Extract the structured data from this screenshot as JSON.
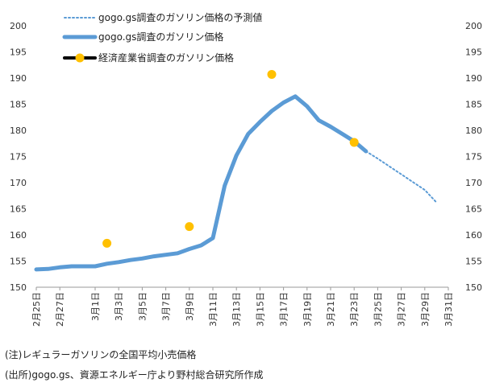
{
  "chart_data": {
    "type": "line",
    "x_labels": [
      "2月25日",
      "2月27日",
      "3月1日",
      "3月3日",
      "3月5日",
      "3月7日",
      "3月9日",
      "3月11日",
      "3月13日",
      "3月15日",
      "3月17日",
      "3月19日",
      "3月21日",
      "3月23日",
      "3月25日",
      "3月27日",
      "3月29日",
      "3月31日"
    ],
    "y_ticks": [
      "150",
      "155",
      "160",
      "165",
      "170",
      "175",
      "180",
      "185",
      "190",
      "195",
      "200"
    ],
    "ylim": [
      150,
      200
    ],
    "xlim": [
      "2月25日",
      "3月31日"
    ],
    "legend_position": "top-left",
    "grid": false,
    "series": [
      {
        "name": "gogo.gs調査のガソリン価格の予測値",
        "style": "dotted",
        "color": "#5b9bd5",
        "points": [
          {
            "x": "3月24日",
            "y": 176.0
          },
          {
            "x": "3月25日",
            "y": 174.6
          },
          {
            "x": "3月26日",
            "y": 173.1
          },
          {
            "x": "3月27日",
            "y": 171.6
          },
          {
            "x": "3月28日",
            "y": 170.1
          },
          {
            "x": "3月29日",
            "y": 168.6
          },
          {
            "x": "3月30日",
            "y": 166.2
          }
        ]
      },
      {
        "name": "gogo.gs調査のガソリン価格",
        "style": "solid",
        "color": "#5b9bd5",
        "points": [
          {
            "x": "2月25日",
            "y": 153.4
          },
          {
            "x": "2月26日",
            "y": 153.5
          },
          {
            "x": "2月27日",
            "y": 153.8
          },
          {
            "x": "2月28日",
            "y": 154.0
          },
          {
            "x": "3月1日",
            "y": 154.0
          },
          {
            "x": "3月2日",
            "y": 154.5
          },
          {
            "x": "3月3日",
            "y": 154.8
          },
          {
            "x": "3月4日",
            "y": 155.2
          },
          {
            "x": "3月5日",
            "y": 155.5
          },
          {
            "x": "3月6日",
            "y": 155.9
          },
          {
            "x": "3月7日",
            "y": 156.2
          },
          {
            "x": "3月8日",
            "y": 156.5
          },
          {
            "x": "3月9日",
            "y": 157.3
          },
          {
            "x": "3月10日",
            "y": 158.0
          },
          {
            "x": "3月11日",
            "y": 159.4
          },
          {
            "x": "3月12日",
            "y": 169.4
          },
          {
            "x": "3月13日",
            "y": 175.2
          },
          {
            "x": "3月14日",
            "y": 179.3
          },
          {
            "x": "3月15日",
            "y": 181.6
          },
          {
            "x": "3月16日",
            "y": 183.7
          },
          {
            "x": "3月17日",
            "y": 185.3
          },
          {
            "x": "3月18日",
            "y": 186.5
          },
          {
            "x": "3月19日",
            "y": 184.6
          },
          {
            "x": "3月20日",
            "y": 181.9
          },
          {
            "x": "3月21日",
            "y": 180.7
          },
          {
            "x": "3月22日",
            "y": 179.3
          },
          {
            "x": "3月23日",
            "y": 177.9
          },
          {
            "x": "3月24日",
            "y": 176.0
          }
        ]
      },
      {
        "name": "経済産業省調査のガソリン価格",
        "style": "markers",
        "color": "#ffc000",
        "points": [
          {
            "x": "3月2日",
            "y": 158.4
          },
          {
            "x": "3月9日",
            "y": 161.6
          },
          {
            "x": "3月16日",
            "y": 190.7
          },
          {
            "x": "3月23日",
            "y": 177.7
          }
        ]
      }
    ]
  },
  "notes": {
    "line1": "(注)レギュラーガソリンの全国平均小売価格",
    "line2": "(出所)gogo.gs、資源エネルギー庁より野村総合研究所作成"
  }
}
